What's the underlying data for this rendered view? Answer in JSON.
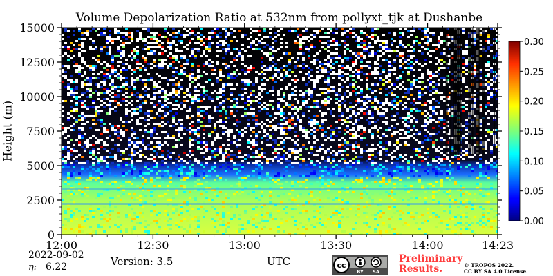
{
  "chart_data": {
    "type": "heatmap",
    "title": "Volume Depolarization Ratio at 532nm from pollyxt_tjk at Dushanbe",
    "xlabel": "UTC",
    "ylabel": "Height (m)",
    "x_range": [
      "12:00",
      "14:23"
    ],
    "x_ticks": [
      "12:00",
      "12:30",
      "13:00",
      "13:30",
      "14:00",
      "14:23"
    ],
    "x_tick_minutes": [
      0,
      30,
      60,
      90,
      120,
      143
    ],
    "ylim": [
      0,
      15000
    ],
    "y_ticks": [
      0,
      2500,
      5000,
      7500,
      10000,
      12500,
      15000
    ],
    "colorbar": {
      "min": 0.0,
      "max": 0.3,
      "ticks": [
        "0.00",
        "0.05",
        "0.10",
        "0.15",
        "0.20",
        "0.25",
        "0.30"
      ],
      "tick_values": [
        0.0,
        0.05,
        0.1,
        0.15,
        0.2,
        0.25,
        0.3
      ],
      "colormap": "jet"
    },
    "layers": [
      {
        "range": [
          0,
          4300
        ],
        "typical_value": 0.13
      },
      {
        "range": [
          4300,
          5200
        ],
        "typical_value": 0.05
      },
      {
        "range": [
          5200,
          15000
        ],
        "typical_value": "noise"
      }
    ]
  },
  "footer": {
    "date": "2022-09-02",
    "eta_label": "η:",
    "eta_value": "6.22",
    "version": "Version: 3.5",
    "preliminary": [
      "Preliminary",
      "Results."
    ],
    "copyright": [
      "© TROPOS 2022.",
      "CC BY SA 4.0 License."
    ],
    "cc_badge": [
      "cc",
      "BY",
      "SA"
    ]
  },
  "colors": {
    "background": "#ffffff",
    "preliminary": "#ff3b3b",
    "badge": "#4a4a4a"
  }
}
